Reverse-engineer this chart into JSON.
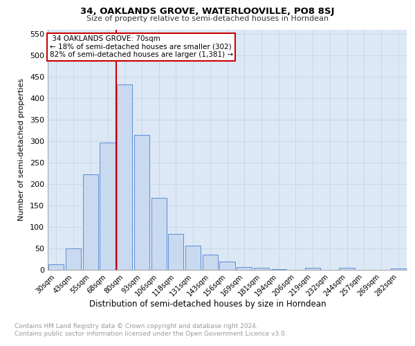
{
  "title": "34, OAKLANDS GROVE, WATERLOOVILLE, PO8 8SJ",
  "subtitle": "Size of property relative to semi-detached houses in Horndean",
  "xlabel": "Distribution of semi-detached houses by size in Horndean",
  "ylabel": "Number of semi-detached properties",
  "footer": "Contains HM Land Registry data © Crown copyright and database right 2024.\nContains public sector information licensed under the Open Government Licence v3.0.",
  "categories": [
    "30sqm",
    "43sqm",
    "55sqm",
    "68sqm",
    "80sqm",
    "93sqm",
    "106sqm",
    "118sqm",
    "131sqm",
    "143sqm",
    "156sqm",
    "169sqm",
    "181sqm",
    "194sqm",
    "206sqm",
    "219sqm",
    "232sqm",
    "244sqm",
    "257sqm",
    "269sqm",
    "282sqm"
  ],
  "values": [
    13,
    50,
    222,
    297,
    432,
    314,
    168,
    84,
    57,
    35,
    19,
    7,
    5,
    2,
    0,
    5,
    0,
    5,
    0,
    0,
    4
  ],
  "bar_color": "#c9d9f0",
  "bar_edge_color": "#5b8dd9",
  "property_label": "34 OAKLANDS GROVE: 70sqm",
  "smaller_pct": 18,
  "smaller_count": 302,
  "larger_pct": 82,
  "larger_count": 1381,
  "vline_x_index": 3.5,
  "ylim": [
    0,
    560
  ],
  "yticks": [
    0,
    50,
    100,
    150,
    200,
    250,
    300,
    350,
    400,
    450,
    500,
    550
  ],
  "grid_color": "#c8d8e8",
  "plot_background": "#dce8f5",
  "fig_background": "#ffffff"
}
